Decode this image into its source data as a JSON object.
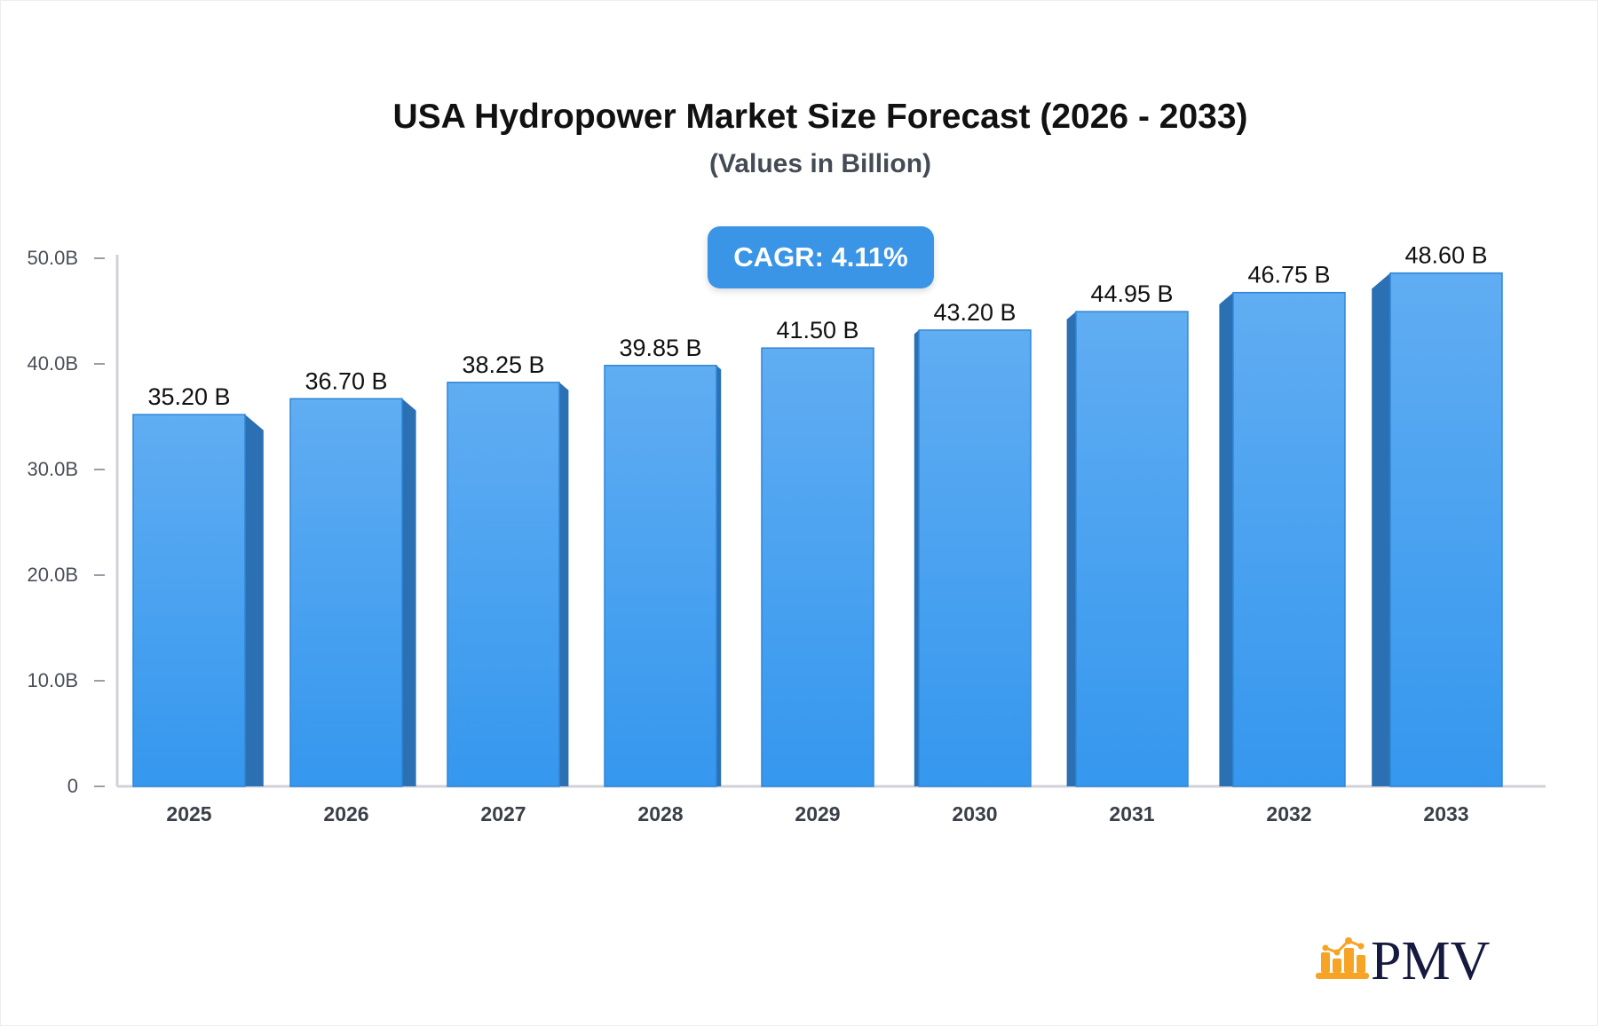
{
  "chart_data": {
    "type": "bar",
    "title": "USA Hydropower Market Size Forecast (2026 - 2033)",
    "subtitle": "(Values in Billion)",
    "annotation": "CAGR: 4.11%",
    "categories": [
      "2025",
      "2026",
      "2027",
      "2028",
      "2029",
      "2030",
      "2031",
      "2032",
      "2033"
    ],
    "values": [
      35.2,
      36.7,
      38.25,
      39.85,
      41.5,
      43.2,
      44.95,
      46.75,
      48.6
    ],
    "data_labels": [
      "35.20 B",
      "36.70 B",
      "38.25 B",
      "39.85 B",
      "41.50 B",
      "43.20 B",
      "44.95 B",
      "46.75 B",
      "48.60 B"
    ],
    "y_ticks": [
      0,
      10,
      20,
      30,
      40,
      50
    ],
    "y_tick_labels": [
      "0",
      "10.0B",
      "20.0B",
      "30.0B",
      "40.0B",
      "50.0B"
    ],
    "ylim": [
      0,
      50
    ],
    "xlabel": "",
    "ylabel": "",
    "grid": false,
    "colors": {
      "bar_front": "#4aa3f0",
      "bar_side": "#2a70b3",
      "cagr_bg": "#3a95e6"
    }
  },
  "logo": {
    "text": "PMV",
    "icon_color": "#f7a325",
    "text_color": "#161a3e"
  }
}
